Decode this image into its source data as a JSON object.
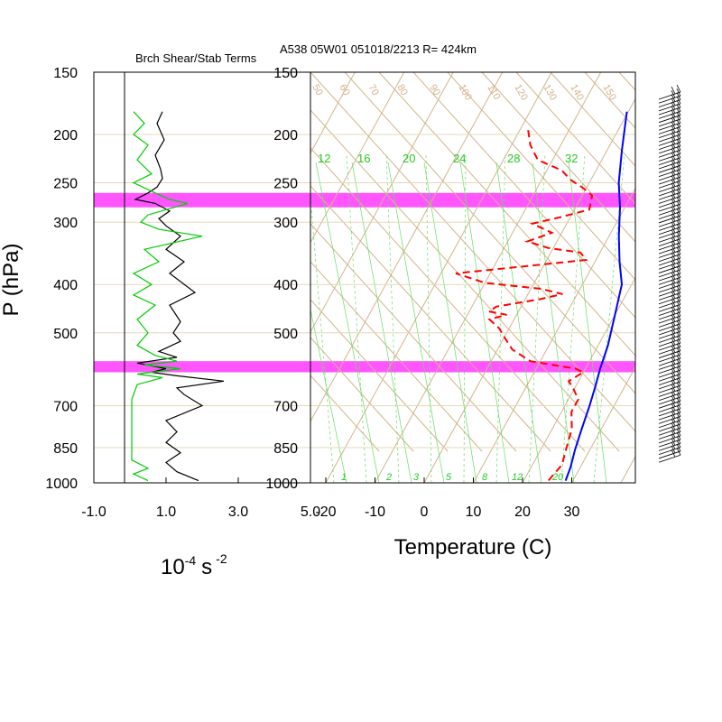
{
  "header": {
    "left_title": "Brch Shear/Stab Terms",
    "right_title": "A538 05W01 051018/2213 R= 424km"
  },
  "axes": {
    "ylabel": "P (hPa)",
    "right_xlabel": "Temperature (C)",
    "left_xlabel_base": "10",
    "left_xlabel_exp": "-4",
    "left_xlabel_unit": "s",
    "left_xlabel_unit_exp": "-2"
  },
  "colors": {
    "temperature": "#ff0000",
    "dewpoint_or_profile": "#0000ff",
    "green_profile": "#00cc00",
    "black_profile": "#000000",
    "highlight_band": "#ff55ff",
    "grid_brown": "#d2b48c",
    "moist_adiabat_green": "#66dd66"
  },
  "chart_data": [
    {
      "type": "line",
      "title": "Brch Shear/Stab Terms",
      "xlabel": "10^-4 s^-2",
      "ylabel": "P (hPa)",
      "y_scale": "log",
      "y_reversed": true,
      "ylim": [
        1000,
        150
      ],
      "xlim": [
        -1.0,
        5.0
      ],
      "xticks": [
        "-1.0",
        "1.0",
        "3.0",
        "5.0"
      ],
      "yticks": [
        150,
        200,
        250,
        300,
        400,
        500,
        700,
        850,
        1000
      ],
      "highlight_bands_hPa": [
        [
          262,
          280
        ],
        [
          570,
          600
        ]
      ],
      "series": [
        {
          "color": "black",
          "points": [
            [
              0.9,
              180
            ],
            [
              0.75,
              190
            ],
            [
              0.95,
              205
            ],
            [
              0.7,
              220
            ],
            [
              0.85,
              235
            ],
            [
              0.9,
              245
            ],
            [
              0.75,
              255
            ],
            [
              0.5,
              262
            ],
            [
              0.15,
              270
            ],
            [
              0.7,
              275
            ],
            [
              1.1,
              285
            ],
            [
              0.8,
              295
            ],
            [
              1.0,
              305
            ],
            [
              1.4,
              320
            ],
            [
              1.0,
              340
            ],
            [
              1.5,
              360
            ],
            [
              1.1,
              380
            ],
            [
              1.8,
              415
            ],
            [
              1.1,
              440
            ],
            [
              1.4,
              475
            ],
            [
              1.2,
              500
            ],
            [
              1.4,
              520
            ],
            [
              0.8,
              545
            ],
            [
              1.3,
              560
            ],
            [
              0.2,
              575
            ],
            [
              1.0,
              590
            ],
            [
              0.6,
              600
            ],
            [
              1.3,
              610
            ],
            [
              2.6,
              625
            ],
            [
              1.3,
              645
            ],
            [
              1.5,
              665
            ],
            [
              2.0,
              700
            ],
            [
              1.0,
              750
            ],
            [
              1.3,
              790
            ],
            [
              1.0,
              830
            ],
            [
              1.4,
              870
            ],
            [
              1.0,
              910
            ],
            [
              1.3,
              950
            ],
            [
              1.9,
              990
            ]
          ]
        },
        {
          "color": "green",
          "points": [
            [
              0.1,
              180
            ],
            [
              0.4,
              190
            ],
            [
              0.1,
              200
            ],
            [
              0.5,
              210
            ],
            [
              0.2,
              225
            ],
            [
              0.6,
              240
            ],
            [
              0.1,
              250
            ],
            [
              0.7,
              262
            ],
            [
              1.1,
              270
            ],
            [
              1.6,
              275
            ],
            [
              0.5,
              290
            ],
            [
              0.3,
              300
            ],
            [
              0.8,
              310
            ],
            [
              2.0,
              320
            ],
            [
              0.4,
              340
            ],
            [
              0.8,
              360
            ],
            [
              0.1,
              380
            ],
            [
              0.6,
              400
            ],
            [
              0.1,
              420
            ],
            [
              0.7,
              440
            ],
            [
              0.2,
              470
            ],
            [
              0.5,
              500
            ],
            [
              0.2,
              530
            ],
            [
              0.7,
              555
            ],
            [
              1.3,
              570
            ],
            [
              0.4,
              580
            ],
            [
              1.4,
              590
            ],
            [
              0.2,
              605
            ],
            [
              0.9,
              615
            ],
            [
              0.2,
              635
            ],
            [
              0.05,
              680
            ],
            [
              0.05,
              900
            ],
            [
              0.5,
              935
            ],
            [
              0.1,
              960
            ],
            [
              0.5,
              990
            ]
          ]
        }
      ]
    },
    {
      "type": "line",
      "title": "A538 05W01 051018/2213 R= 424km",
      "xlabel": "Temperature (C)",
      "ylabel": "P (hPa)",
      "y_scale": "log",
      "y_reversed": true,
      "ylim": [
        1000,
        150
      ],
      "xlim": [
        -23,
        43
      ],
      "xticks": [
        -20,
        -10,
        0,
        10,
        20,
        30
      ],
      "yticks": [
        150,
        200,
        250,
        300,
        400,
        500,
        700,
        850,
        1000
      ],
      "skewed": true,
      "highlight_bands_hPa": [
        [
          262,
          280
        ],
        [
          570,
          600
        ]
      ],
      "mixing_ratio_labels_top": [
        "12",
        "16",
        "20",
        "24",
        "28",
        "32"
      ],
      "mixing_ratio_labels_bottom": [
        "1",
        "2",
        "3",
        "5",
        "8",
        "12",
        "20"
      ],
      "theta_labels": [
        "50",
        "60",
        "70",
        "80",
        "90",
        "100",
        "110",
        "120",
        "130",
        "140",
        "150"
      ],
      "series": [
        {
          "color": "blue",
          "style": "solid",
          "points": [
            [
              -0.3,
              180
            ],
            [
              3,
              215
            ],
            [
              6,
              250
            ],
            [
              9,
              280
            ],
            [
              12,
              320
            ],
            [
              15,
              360
            ],
            [
              18,
              400
            ],
            [
              20,
              460
            ],
            [
              22,
              530
            ],
            [
              23,
              590
            ],
            [
              24,
              640
            ],
            [
              25,
              700
            ],
            [
              26,
              780
            ],
            [
              27,
              860
            ],
            [
              28,
              930
            ],
            [
              28.5,
              990
            ]
          ]
        },
        {
          "color": "red",
          "style": "dashed",
          "points": [
            [
              -18.3,
              196
            ],
            [
              -16.2,
              210
            ],
            [
              -13,
              225
            ],
            [
              -7,
              236
            ],
            [
              -4,
              247
            ],
            [
              -1,
              255
            ],
            [
              2,
              265
            ],
            [
              3,
              283
            ],
            [
              -2,
              293
            ],
            [
              -7,
              302
            ],
            [
              -2,
              315
            ],
            [
              -6,
              328
            ],
            [
              -1,
              338
            ],
            [
              6,
              345
            ],
            [
              8,
              357
            ],
            [
              -4,
              368
            ],
            [
              -17,
              380
            ],
            [
              -10,
              397
            ],
            [
              2,
              408
            ],
            [
              7,
              418
            ],
            [
              3,
              428
            ],
            [
              -5,
              443
            ],
            [
              -6,
              453
            ],
            [
              -2,
              460
            ],
            [
              -5,
              470
            ],
            [
              -2,
              490
            ],
            [
              0,
              510
            ],
            [
              3,
              540
            ],
            [
              8,
              570
            ],
            [
              18,
              590
            ],
            [
              20,
              600
            ],
            [
              18,
              625
            ],
            [
              20,
              650
            ],
            [
              22,
              680
            ],
            [
              22,
              720
            ],
            [
              24,
              780
            ],
            [
              25,
              850
            ],
            [
              26,
              920
            ],
            [
              25,
              990
            ]
          ]
        }
      ]
    }
  ],
  "ticks": {
    "pressure_labels": [
      "150",
      "200",
      "250",
      "300",
      "400",
      "500",
      "700",
      "850",
      "1000"
    ],
    "left_x_labels": [
      "-1.0",
      "1.0",
      "3.0",
      "5.0"
    ],
    "right_x_labels": [
      "-20",
      "-10",
      "0",
      "10",
      "20",
      "30"
    ]
  }
}
